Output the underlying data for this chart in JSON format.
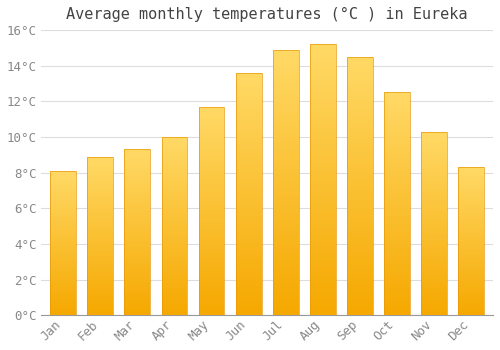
{
  "title": "Average monthly temperatures (°C ) in Eureka",
  "months": [
    "Jan",
    "Feb",
    "Mar",
    "Apr",
    "May",
    "Jun",
    "Jul",
    "Aug",
    "Sep",
    "Oct",
    "Nov",
    "Dec"
  ],
  "values": [
    8.1,
    8.9,
    9.3,
    10.0,
    11.7,
    13.6,
    14.9,
    15.2,
    14.5,
    12.5,
    10.3,
    8.3
  ],
  "bar_color_bottom": "#F5A800",
  "bar_color_top": "#FFD966",
  "background_color": "#FFFFFF",
  "plot_bg_color": "#FFFFFF",
  "grid_color": "#DDDDDD",
  "tick_label_color": "#888888",
  "title_color": "#444444",
  "ylim": [
    0,
    16
  ],
  "yticks": [
    0,
    2,
    4,
    6,
    8,
    10,
    12,
    14,
    16
  ],
  "ytick_labels": [
    "0°C",
    "2°C",
    "4°C",
    "6°C",
    "8°C",
    "10°C",
    "12°C",
    "14°C",
    "16°C"
  ],
  "title_fontsize": 11,
  "tick_fontsize": 9,
  "figsize": [
    5.0,
    3.5
  ],
  "dpi": 100,
  "gradient_steps": 100
}
